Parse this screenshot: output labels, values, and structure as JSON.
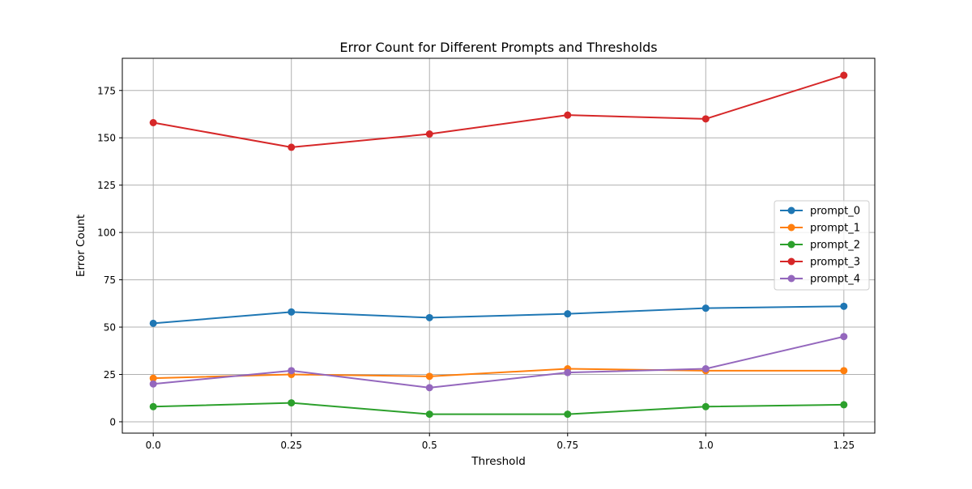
{
  "chart_data": {
    "type": "line",
    "title": "Error Count for Different Prompts and Thresholds",
    "xlabel": "Threshold",
    "ylabel": "Error Count",
    "x": [
      0.0,
      0.25,
      0.5,
      0.75,
      1.0,
      1.25
    ],
    "x_tick_labels": [
      "0.0",
      "0.25",
      "0.5",
      "0.75",
      "1.0",
      "1.25"
    ],
    "y_ticks": [
      0,
      25,
      50,
      75,
      100,
      125,
      150,
      175
    ],
    "y_tick_labels": [
      "0",
      "25",
      "50",
      "75",
      "100",
      "125",
      "150",
      "175"
    ],
    "xlim": [
      -0.056,
      1.306
    ],
    "ylim": [
      -6,
      192
    ],
    "grid": true,
    "legend_position": "center-right",
    "series": [
      {
        "name": "prompt_0",
        "color": "#1f77b4",
        "values": [
          52,
          58,
          55,
          57,
          60,
          61
        ]
      },
      {
        "name": "prompt_1",
        "color": "#ff7f0e",
        "values": [
          23,
          25,
          24,
          28,
          27,
          27
        ]
      },
      {
        "name": "prompt_2",
        "color": "#2ca02c",
        "values": [
          8,
          10,
          4,
          4,
          8,
          9
        ]
      },
      {
        "name": "prompt_3",
        "color": "#d62728",
        "values": [
          158,
          145,
          152,
          162,
          160,
          183
        ]
      },
      {
        "name": "prompt_4",
        "color": "#9467bd",
        "values": [
          20,
          27,
          18,
          26,
          28,
          45
        ]
      }
    ]
  }
}
